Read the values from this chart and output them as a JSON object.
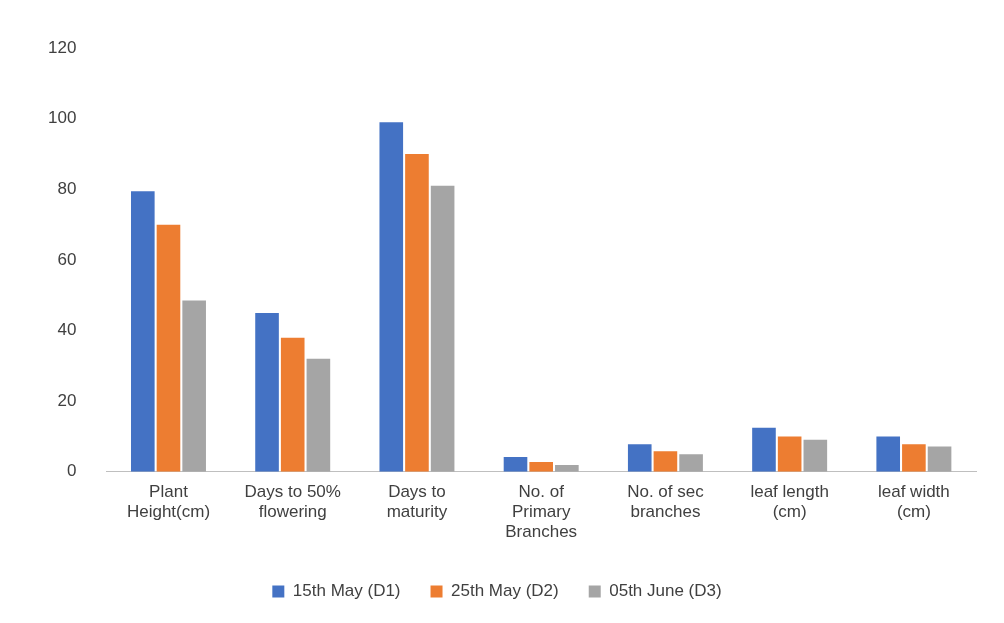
{
  "chart_data": {
    "type": "bar",
    "categories": [
      "Plant Height(cm)",
      "Days to 50% flowering",
      "Days to maturity",
      "No. of Primary Branches",
      "No. of sec branches",
      "leaf length (cm)",
      "leaf width (cm)"
    ],
    "series": [
      {
        "name": "15th May (D1)",
        "color": "#4472c4",
        "values": [
          79.5,
          45,
          99,
          4.2,
          7.8,
          12.5,
          10
        ]
      },
      {
        "name": "25th May (D2)",
        "color": "#ed7d31",
        "values": [
          70,
          38,
          90,
          2.8,
          5.8,
          10,
          7.8
        ]
      },
      {
        "name": "05th June (D3)",
        "color": "#a5a5a5",
        "values": [
          48.5,
          32,
          81,
          1.9,
          5,
          9.1,
          7.2
        ]
      }
    ],
    "ylim": [
      0,
      120
    ],
    "yticks": [
      0,
      20,
      40,
      60,
      80,
      100,
      120
    ],
    "grid": false,
    "legend": "bottom"
  }
}
